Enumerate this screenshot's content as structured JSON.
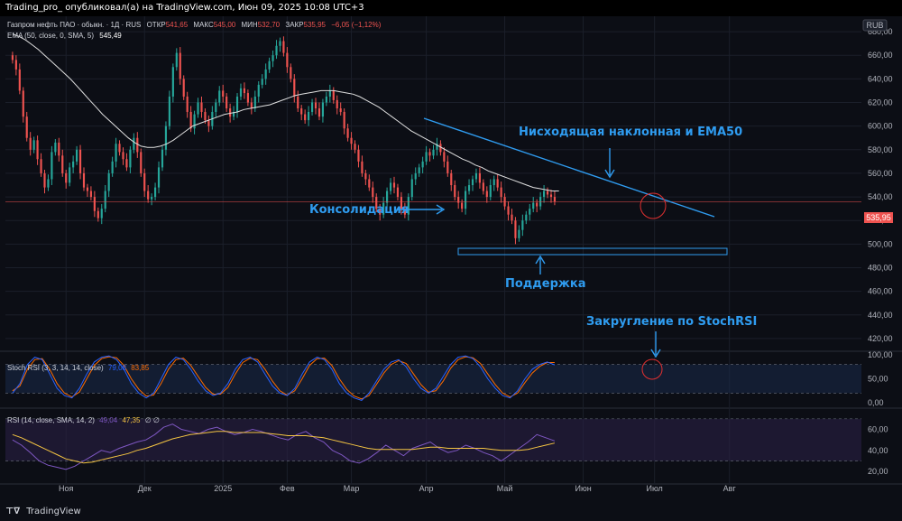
{
  "header": {
    "text": "Trading_pro_ опубликовал(а) на TradingView.com, Июн 09, 2025 10:08 UTC+3"
  },
  "currency_badge": "RUB",
  "legend": {
    "symbol": "Газпром нефть ПАО · обыкн. · 1Д · RUS",
    "open_label": "ОТКР",
    "open": "541,65",
    "high_label": "МАКС",
    "high": "545,00",
    "low_label": "МИН",
    "low": "532,70",
    "close_label": "ЗАКР",
    "close": "535,95",
    "change": "−6,05 (−1,12%)",
    "ema_label": "EMA (50, close, 0, SMA, 5)",
    "ema_value": "545,49"
  },
  "stoch_legend": {
    "label": "Stoch RSI (3, 3, 14, 14, close)",
    "k": "79,08",
    "d": "83,85"
  },
  "rsi_legend": {
    "label": "RSI (14, close, SMA, 14, 2)",
    "rsi": "49,04",
    "ma": "47,35",
    "extra": "∅ ∅"
  },
  "annotations": {
    "trendline": "Нисходящая наклонная и EMA50",
    "consolidation": "Консолидация",
    "support": "Поддержка",
    "stoch_round": "Закругление по StochRSI"
  },
  "price_tag": "535,95",
  "footer": {
    "brand": "TradingView",
    "icon": "tv-logo-icon"
  },
  "colors": {
    "up": "#26a69a",
    "down": "#ef5350",
    "ema": "#e0e0e0",
    "annotation": "#2f9cf0",
    "stoch_k": "#2962ff",
    "stoch_d": "#ff6d00",
    "rsi": "#7e57c2",
    "rsi_ma": "#f5c542"
  },
  "chart_data": [
    {
      "type": "line",
      "name": "price",
      "x_ticks": [
        "Ноя",
        "Дек",
        "2025",
        "Фев",
        "Мар",
        "Апр",
        "Май",
        "Июн",
        "Июл",
        "Авг"
      ],
      "y_ticks": [
        "680,00",
        "660,00",
        "640,00",
        "620,00",
        "600,00",
        "580,00",
        "560,00",
        "540,00",
        "520,00",
        "500,00",
        "480,00",
        "460,00",
        "440,00",
        "420,00"
      ],
      "ylim": [
        410,
        690
      ],
      "x_range": [
        0,
        240
      ],
      "month_day_index": [
        17,
        39,
        61,
        79,
        97,
        118,
        140,
        162,
        182,
        203
      ],
      "close": [
        656,
        648,
        630,
        608,
        590,
        580,
        588,
        572,
        560,
        548,
        555,
        578,
        586,
        575,
        560,
        552,
        565,
        570,
        580,
        560,
        548,
        545,
        540,
        528,
        522,
        530,
        545,
        560,
        570,
        585,
        578,
        572,
        565,
        580,
        590,
        578,
        560,
        545,
        538,
        540,
        548,
        565,
        580,
        600,
        625,
        650,
        662,
        640,
        625,
        612,
        598,
        610,
        620,
        612,
        605,
        600,
        612,
        620,
        630,
        625,
        615,
        608,
        612,
        625,
        632,
        628,
        620,
        615,
        625,
        635,
        640,
        648,
        655,
        660,
        668,
        672,
        662,
        650,
        640,
        625,
        615,
        610,
        605,
        612,
        620,
        615,
        608,
        620,
        625,
        630,
        622,
        615,
        612,
        598,
        590,
        585,
        580,
        570,
        560,
        555,
        548,
        540,
        530,
        525,
        535,
        545,
        552,
        548,
        540,
        530,
        525,
        540,
        555,
        560,
        565,
        570,
        578,
        575,
        580,
        585,
        578,
        570,
        560,
        550,
        540,
        535,
        530,
        545,
        550,
        555,
        560,
        552,
        545,
        540,
        550,
        555,
        548,
        540,
        532,
        525,
        520,
        505,
        512,
        520,
        525,
        530,
        535,
        532,
        540,
        545,
        542,
        540,
        536
      ],
      "ema50": [
        678,
        676,
        673,
        669,
        665,
        660,
        655,
        650,
        645,
        640,
        634,
        628,
        622,
        616,
        610,
        605,
        600,
        595,
        590,
        586,
        583,
        582,
        582,
        583,
        585,
        588,
        592,
        596,
        600,
        602,
        604,
        606,
        608,
        610,
        611,
        612,
        614,
        615,
        616,
        617,
        618,
        620,
        622,
        624,
        626,
        627,
        628,
        629,
        630,
        630,
        630,
        629,
        628,
        627,
        625,
        622,
        619,
        616,
        612,
        608,
        604,
        600,
        596,
        593,
        590,
        587,
        584,
        581,
        578,
        575,
        572,
        570,
        567,
        565,
        562,
        560,
        558,
        556,
        554,
        552,
        550,
        548,
        547,
        546,
        545,
        545
      ]
    },
    {
      "type": "line",
      "name": "Stoch RSI",
      "ylim": [
        0,
        100
      ],
      "y_ticks": [
        "100,00",
        "50,00",
        "0,00"
      ],
      "k": [
        20,
        40,
        80,
        95,
        90,
        60,
        30,
        15,
        10,
        30,
        60,
        85,
        95,
        98,
        90,
        70,
        40,
        20,
        10,
        20,
        50,
        80,
        95,
        90,
        70,
        45,
        25,
        15,
        20,
        40,
        70,
        90,
        95,
        85,
        60,
        35,
        20,
        15,
        30,
        60,
        85,
        95,
        90,
        70,
        40,
        20,
        10,
        5,
        20,
        45,
        70,
        85,
        90,
        75,
        50,
        30,
        20,
        30,
        55,
        80,
        95,
        98,
        92,
        75,
        50,
        30,
        15,
        10,
        25,
        50,
        70,
        80,
        85,
        79
      ],
      "d": [
        25,
        35,
        70,
        90,
        92,
        70,
        40,
        20,
        12,
        22,
        50,
        78,
        92,
        96,
        94,
        78,
        50,
        28,
        14,
        16,
        40,
        70,
        90,
        93,
        78,
        55,
        32,
        18,
        18,
        32,
        60,
        84,
        93,
        90,
        70,
        45,
        25,
        16,
        25,
        50,
        78,
        92,
        93,
        78,
        50,
        28,
        14,
        8,
        15,
        38,
        62,
        80,
        88,
        82,
        60,
        38,
        22,
        25,
        45,
        72,
        90,
        96,
        94,
        82,
        60,
        38,
        20,
        12,
        20,
        42,
        62,
        76,
        84,
        84
      ]
    },
    {
      "type": "line",
      "name": "RSI",
      "ylim": [
        15,
        75
      ],
      "y_ticks": [
        "60,00",
        "40,00",
        "20,00"
      ],
      "rsi": [
        50,
        45,
        38,
        30,
        26,
        24,
        22,
        25,
        30,
        35,
        40,
        38,
        42,
        45,
        48,
        50,
        55,
        62,
        65,
        60,
        58,
        56,
        60,
        62,
        58,
        55,
        57,
        60,
        58,
        55,
        52,
        50,
        55,
        58,
        52,
        48,
        40,
        36,
        30,
        28,
        32,
        38,
        45,
        40,
        35,
        42,
        45,
        48,
        42,
        38,
        40,
        45,
        42,
        38,
        35,
        30,
        36,
        42,
        48,
        55,
        52,
        49
      ],
      "ma": [
        55,
        52,
        48,
        44,
        40,
        36,
        32,
        30,
        28,
        29,
        31,
        33,
        35,
        37,
        40,
        42,
        45,
        48,
        51,
        53,
        55,
        56,
        57,
        58,
        58,
        57,
        57,
        57,
        57,
        56,
        55,
        54,
        54,
        54,
        53,
        52,
        50,
        48,
        46,
        44,
        42,
        41,
        41,
        41,
        41,
        41,
        42,
        43,
        43,
        42,
        42,
        42,
        42,
        42,
        41,
        40,
        40,
        40,
        41,
        43,
        45,
        47
      ]
    }
  ]
}
